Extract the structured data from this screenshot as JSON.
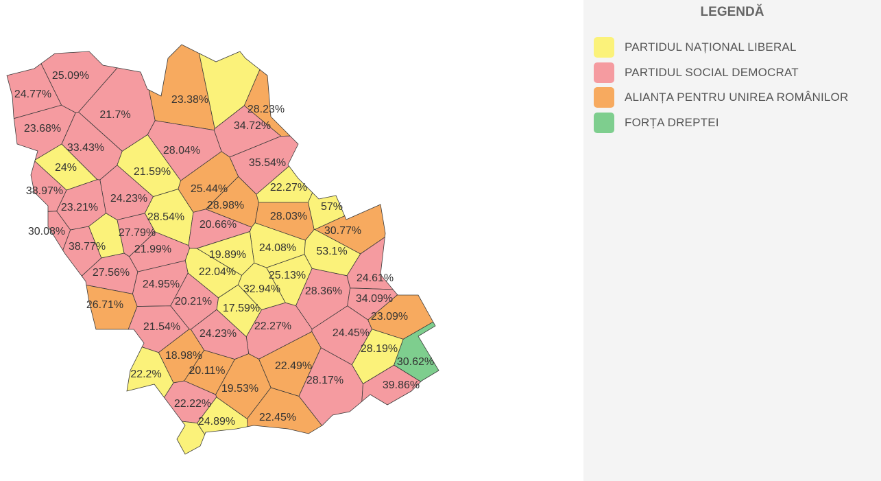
{
  "legend": {
    "title": "LEGENDĂ",
    "items": [
      {
        "label": "PARTIDUL NAȚIONAL LIBERAL",
        "color": "#fbf27a"
      },
      {
        "label": "PARTIDUL SOCIAL DEMOCRAT",
        "color": "#f59ba0"
      },
      {
        "label": "ALIANȚA PENTRU UNIREA ROMÂNILOR",
        "color": "#f7aa5f"
      },
      {
        "label": "FORȚA DREPTEI",
        "color": "#7ece8e"
      }
    ]
  },
  "regions": [
    {
      "label": "25.09%",
      "party": 1
    },
    {
      "label": "24.77%",
      "party": 1
    },
    {
      "label": "21.7%",
      "party": 1
    },
    {
      "label": "23.38%",
      "party": 2
    },
    {
      "label": "28.23%",
      "party": 2
    },
    {
      "label": "34.72%",
      "party": 1
    },
    {
      "label": "23.68%",
      "party": 1
    },
    {
      "label": "33.43%",
      "party": 1
    },
    {
      "label": "24%",
      "party": 0
    },
    {
      "label": "28.04%",
      "party": 1
    },
    {
      "label": "35.54%",
      "party": 1
    },
    {
      "label": "21.59%",
      "party": 0
    },
    {
      "label": "38.97%",
      "party": 1
    },
    {
      "label": "25.44%",
      "party": 2
    },
    {
      "label": "22.27%",
      "party": 0
    },
    {
      "label": "57%",
      "party": 0
    },
    {
      "label": "24.23%",
      "party": 1
    },
    {
      "label": "23.21%",
      "party": 1
    },
    {
      "label": "28.98%",
      "party": 2
    },
    {
      "label": "28.54%",
      "party": 0
    },
    {
      "label": "28.03%",
      "party": 2
    },
    {
      "label": "20.66%",
      "party": 1
    },
    {
      "label": "30.08%",
      "party": 1
    },
    {
      "label": "27.79%",
      "party": 1
    },
    {
      "label": "30.77%",
      "party": 2
    },
    {
      "label": "38.77%",
      "party": 1
    },
    {
      "label": "21.99%",
      "party": 1
    },
    {
      "label": "24.08%",
      "party": 0
    },
    {
      "label": "53.1%",
      "party": 0
    },
    {
      "label": "19.89%",
      "party": 0
    },
    {
      "label": "27.56%",
      "party": 1
    },
    {
      "label": "22.04%",
      "party": 0
    },
    {
      "label": "25.13%",
      "party": 0
    },
    {
      "label": "24.61%",
      "party": 1
    },
    {
      "label": "24.95%",
      "party": 1
    },
    {
      "label": "32.94%",
      "party": 0
    },
    {
      "label": "28.36%",
      "party": 1
    },
    {
      "label": "34.09%",
      "party": 1
    },
    {
      "label": "20.21%",
      "party": 1
    },
    {
      "label": "26.71%",
      "party": 2
    },
    {
      "label": "17.59%",
      "party": 0
    },
    {
      "label": "23.09%",
      "party": 2
    },
    {
      "label": "21.54%",
      "party": 1
    },
    {
      "label": "22.27%",
      "party": 1
    },
    {
      "label": "24.45%",
      "party": 1
    },
    {
      "label": "24.23%",
      "party": 1
    },
    {
      "label": "28.19%",
      "party": 0
    },
    {
      "label": "30.62%",
      "party": 3
    },
    {
      "label": "18.98%",
      "party": 2
    },
    {
      "label": "22.49%",
      "party": 2
    },
    {
      "label": "20.11%",
      "party": 2
    },
    {
      "label": "22.2%",
      "party": 0
    },
    {
      "label": "28.17%",
      "party": 1
    },
    {
      "label": "39.86%",
      "party": 1
    },
    {
      "label": "19.53%",
      "party": 2
    },
    {
      "label": "22.22%",
      "party": 1
    },
    {
      "label": "24.89%",
      "party": 0
    },
    {
      "label": "22.45%",
      "party": 2
    },
    {
      "party": 0
    },
    {
      "party": 0
    },
    {
      "party": 0
    }
  ]
}
